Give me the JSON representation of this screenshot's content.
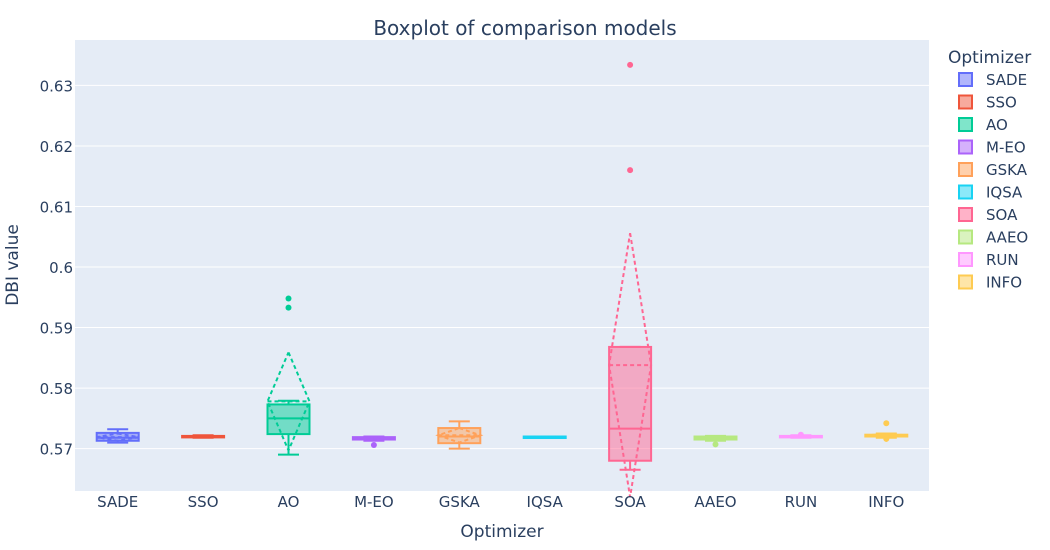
{
  "chart_data": {
    "type": "box",
    "title": "Boxplot of comparison models",
    "xlabel": "Optimizer",
    "ylabel": "DBI value",
    "legend_title": "Optimizer",
    "legend_position": "right",
    "ylim": [
      0.563,
      0.6375
    ],
    "yticks": [
      0.57,
      0.58,
      0.59,
      0.6,
      0.61,
      0.62,
      0.63
    ],
    "ytick_labels": [
      "0.57",
      "0.58",
      "0.59",
      "0.6",
      "0.61",
      "0.62",
      "0.63"
    ],
    "grid": true,
    "boxmean": "sd",
    "categories": [
      "SADE",
      "SSO",
      "AO",
      "M-EO",
      "GSKA",
      "IQSA",
      "SOA",
      "AAEO",
      "RUN",
      "INFO"
    ],
    "series": [
      {
        "name": "SADE",
        "color": "#636efa",
        "min": 0.571,
        "q1": 0.5713,
        "median": 0.5718,
        "q3": 0.5726,
        "max": 0.5732,
        "mean": 0.5719,
        "sd": 0.0006,
        "outliers": []
      },
      {
        "name": "SSO",
        "color": "#EF553B",
        "min": 0.5718,
        "q1": 0.5719,
        "median": 0.572,
        "q3": 0.5721,
        "max": 0.5722,
        "mean": 0.572,
        "sd": 0.0001,
        "outliers": []
      },
      {
        "name": "AO",
        "color": "#00cc96",
        "min": 0.569,
        "q1": 0.5724,
        "median": 0.575,
        "q3": 0.5773,
        "max": 0.5779,
        "mean": 0.5778,
        "sd": 0.0081,
        "outliers": [
          0.5933,
          0.5948
        ]
      },
      {
        "name": "M-EO",
        "color": "#ab63fa",
        "min": 0.5713,
        "q1": 0.5715,
        "median": 0.5717,
        "q3": 0.5719,
        "max": 0.572,
        "mean": 0.5717,
        "sd": 0.0002,
        "outliers": [
          0.5706
        ]
      },
      {
        "name": "GSKA",
        "color": "#FFA15A",
        "min": 0.57,
        "q1": 0.5709,
        "median": 0.572,
        "q3": 0.5734,
        "max": 0.5745,
        "mean": 0.5722,
        "sd": 0.0012,
        "outliers": []
      },
      {
        "name": "IQSA",
        "color": "#19d3f3",
        "min": 0.572,
        "q1": 0.572,
        "median": 0.572,
        "q3": 0.572,
        "max": 0.572,
        "mean": 0.572,
        "sd": 0.0,
        "outliers": []
      },
      {
        "name": "SOA",
        "color": "#FF6692",
        "min": 0.5665,
        "q1": 0.568,
        "median": 0.5733,
        "q3": 0.5868,
        "max": 0.5868,
        "mean": 0.5838,
        "sd": 0.0218,
        "outliers": [
          0.616,
          0.6334
        ]
      },
      {
        "name": "AAEO",
        "color": "#B6E880",
        "min": 0.5713,
        "q1": 0.5715,
        "median": 0.5718,
        "q3": 0.572,
        "max": 0.5721,
        "mean": 0.5717,
        "sd": 0.0003,
        "outliers": [
          0.5707
        ]
      },
      {
        "name": "RUN",
        "color": "#FF97FF",
        "min": 0.5718,
        "q1": 0.5719,
        "median": 0.572,
        "q3": 0.5721,
        "max": 0.5722,
        "mean": 0.572,
        "sd": 0.0001,
        "outliers": [
          0.5723
        ]
      },
      {
        "name": "INFO",
        "color": "#FECB52",
        "min": 0.5718,
        "q1": 0.572,
        "median": 0.5722,
        "q3": 0.5723,
        "max": 0.5725,
        "mean": 0.5722,
        "sd": 0.0002,
        "outliers": [
          0.5742,
          0.5716
        ]
      }
    ]
  }
}
